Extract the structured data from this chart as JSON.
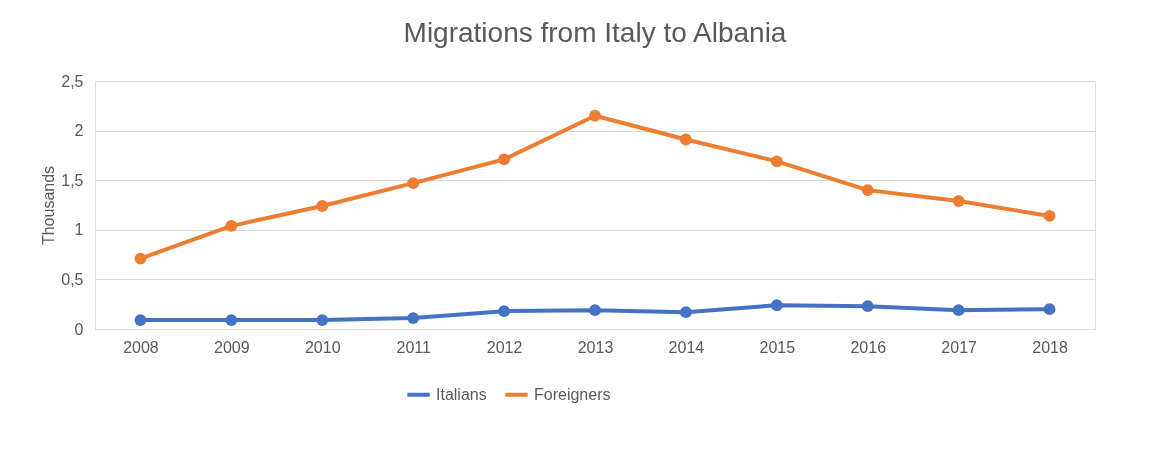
{
  "chart_data": {
    "type": "line",
    "title": "Migrations from Italy to Albania",
    "ylabel": "Thousands",
    "categories": [
      "2008",
      "2009",
      "2010",
      "2011",
      "2012",
      "2013",
      "2014",
      "2015",
      "2016",
      "2017",
      "2018"
    ],
    "series": [
      {
        "name": "Italians",
        "color": "#4472c4",
        "values": [
          0.09,
          0.09,
          0.09,
          0.11,
          0.18,
          0.19,
          0.17,
          0.24,
          0.23,
          0.19,
          0.2
        ]
      },
      {
        "name": "Foreigners",
        "color": "#ed7d31",
        "values": [
          0.71,
          1.04,
          1.24,
          1.47,
          1.71,
          2.15,
          1.91,
          1.69,
          1.4,
          1.29,
          1.14
        ]
      }
    ],
    "ylim": [
      0,
      2.5
    ],
    "yticks": [
      0,
      {
        "value": 0.5,
        "label": "0,5"
      },
      1,
      {
        "value": 1.5,
        "label": "1,5"
      },
      2,
      {
        "value": 2.5,
        "label": "2,5"
      }
    ],
    "grid": "y",
    "legend": "bottom",
    "marker": "circle",
    "line_style": "solid"
  }
}
